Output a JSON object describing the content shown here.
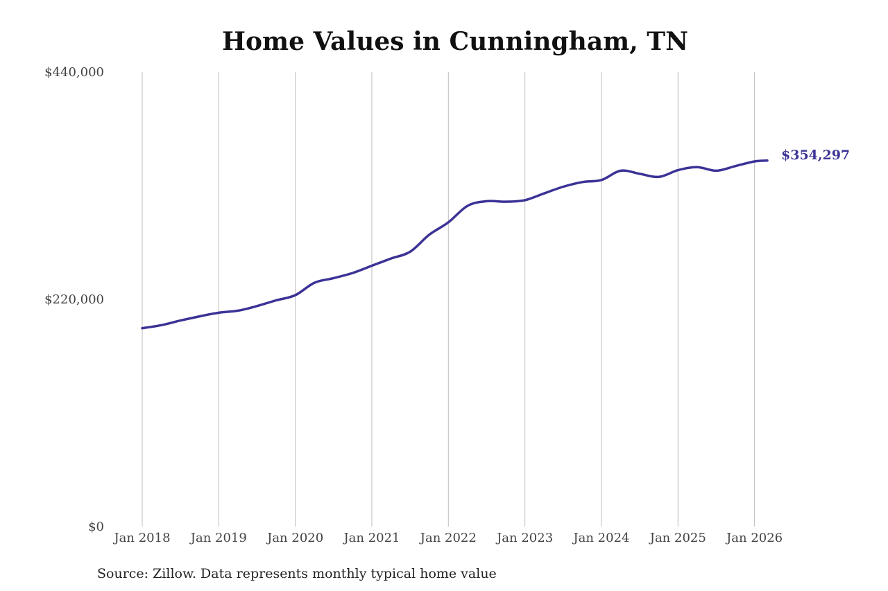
{
  "chart_data": {
    "type": "line",
    "title": "Home Values in Cunningham, TN",
    "xlabel": "",
    "ylabel": "",
    "ylim": [
      0,
      440000
    ],
    "y_ticks": [
      "$440,000",
      "$220,000",
      "$0"
    ],
    "y_tick_values": [
      440000,
      220000,
      0
    ],
    "x_ticks": [
      "Jan 2018",
      "Jan 2019",
      "Jan 2020",
      "Jan 2021",
      "Jan 2022",
      "Jan 2023",
      "Jan 2024",
      "Jan 2025",
      "Jan 2026"
    ],
    "x_tick_values": [
      "2018-01",
      "2019-01",
      "2020-01",
      "2021-01",
      "2022-01",
      "2023-01",
      "2024-01",
      "2025-01",
      "2026-01"
    ],
    "xlim": [
      "2018-01",
      "2026-03"
    ],
    "grid": "vertical",
    "line_color": "#3b3396",
    "end_label": "$354,297",
    "x": [
      "2018-01",
      "2018-04",
      "2018-07",
      "2018-10",
      "2019-01",
      "2019-04",
      "2019-07",
      "2019-10",
      "2020-01",
      "2020-04",
      "2020-07",
      "2020-10",
      "2021-01",
      "2021-04",
      "2021-07",
      "2021-10",
      "2022-01",
      "2022-04",
      "2022-07",
      "2022-10",
      "2023-01",
      "2023-04",
      "2023-07",
      "2023-10",
      "2024-01",
      "2024-04",
      "2024-07",
      "2024-10",
      "2025-01",
      "2025-04",
      "2025-07",
      "2025-10",
      "2026-01",
      "2026-03"
    ],
    "values": [
      192000,
      195000,
      199500,
      203500,
      207000,
      209000,
      213500,
      219000,
      224000,
      236000,
      240500,
      245500,
      252500,
      259500,
      266000,
      282500,
      294500,
      310500,
      315000,
      314500,
      316000,
      322500,
      329000,
      333500,
      335500,
      344500,
      341500,
      338500,
      345000,
      348000,
      344500,
      349000,
      353500,
      354297
    ]
  },
  "source_note": "Source: Zillow. Data represents monthly typical home value"
}
